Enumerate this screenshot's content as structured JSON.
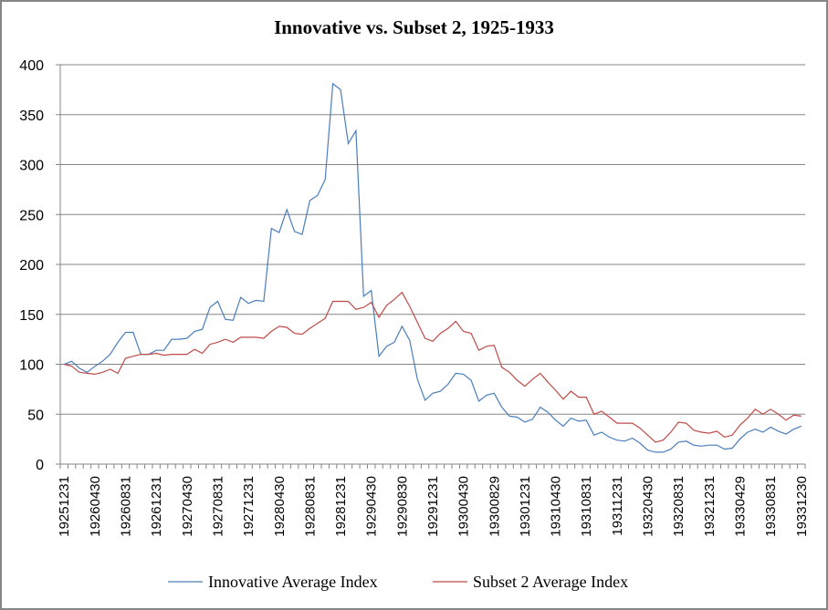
{
  "chart_data": {
    "type": "line",
    "title": "Innovative vs. Subset 2, 1925-1933",
    "xlabel": "",
    "ylabel": "",
    "ylim": [
      0,
      400
    ],
    "yticks": [
      "0",
      "50",
      "100",
      "150",
      "200",
      "250",
      "300",
      "350",
      "400"
    ],
    "ytick_values": [
      0,
      50,
      100,
      150,
      200,
      250,
      300,
      350,
      400
    ],
    "grid": true,
    "legend_position": "bottom",
    "xtick_labels": [
      "19251231",
      "19260430",
      "19260831",
      "19261231",
      "19270430",
      "19270831",
      "19271231",
      "19280430",
      "19280831",
      "19281231",
      "19290430",
      "19290830",
      "19291231",
      "19300430",
      "19300829",
      "19301231",
      "19310430",
      "19310831",
      "19311231",
      "19320430",
      "19320831",
      "19321231",
      "19330429",
      "19330831",
      "19331230"
    ],
    "xtick_every": 4,
    "point_count": 97,
    "series": [
      {
        "name": "Innovative Average Index",
        "color": "#4a7ebb",
        "values": [
          100,
          103,
          96,
          92,
          98,
          103,
          110,
          122,
          132,
          132,
          110,
          110,
          114,
          114,
          125,
          125,
          126,
          133,
          135,
          157,
          163,
          145,
          144,
          167,
          161,
          164,
          163,
          236,
          232,
          255,
          233,
          230,
          264,
          269,
          285,
          381,
          375,
          321,
          334,
          168,
          174,
          108,
          118,
          122,
          138,
          124,
          85,
          64,
          71,
          73,
          80,
          91,
          90,
          84,
          63,
          69,
          71,
          57,
          48,
          47,
          42,
          45,
          57,
          52,
          44,
          38,
          46,
          43,
          44,
          29,
          32,
          27,
          24,
          23,
          26,
          21,
          14,
          12,
          12,
          15,
          22,
          23,
          19,
          18,
          19,
          19,
          15,
          16,
          25,
          32,
          35,
          32,
          37,
          33,
          30,
          35,
          38
        ]
      },
      {
        "name": "Subset 2 Average Index",
        "color": "#be4b48",
        "values": [
          100,
          98,
          92,
          91,
          90,
          92,
          95,
          91,
          106,
          108,
          110,
          110,
          111,
          109,
          110,
          110,
          110,
          115,
          111,
          120,
          122,
          125,
          122,
          127,
          127,
          127,
          126,
          133,
          138,
          137,
          131,
          130,
          136,
          141,
          146,
          163,
          163,
          163,
          155,
          157,
          162,
          147,
          159,
          165,
          172,
          158,
          142,
          126,
          123,
          131,
          136,
          143,
          133,
          131,
          114,
          118,
          119,
          97,
          92,
          84,
          78,
          85,
          91,
          82,
          74,
          65,
          73,
          67,
          67,
          50,
          53,
          47,
          41,
          41,
          41,
          36,
          29,
          22,
          24,
          32,
          42,
          41,
          34,
          32,
          31,
          33,
          27,
          29,
          39,
          46,
          55,
          50,
          55,
          50,
          44,
          49,
          48
        ]
      }
    ]
  }
}
